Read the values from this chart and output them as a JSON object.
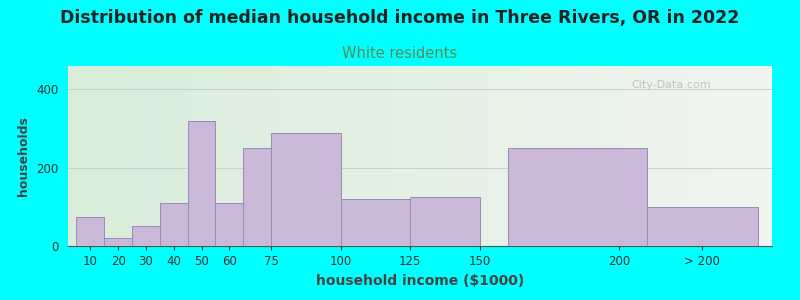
{
  "title": "Distribution of median household income in Three Rivers, OR in 2022",
  "subtitle": "White residents",
  "xlabel": "household income ($1000)",
  "ylabel": "households",
  "background_outer": "#00FFFF",
  "bar_color": "#c9b8d8",
  "bar_edge_color": "#9b89b8",
  "title_fontsize": 12.5,
  "subtitle_fontsize": 10.5,
  "subtitle_color": "#5a8a5a",
  "xlabel_fontsize": 10,
  "ylabel_fontsize": 9,
  "tick_fontsize": 8.5,
  "yticks": [
    0,
    200,
    400
  ],
  "ylim": [
    0,
    460
  ],
  "categories": [
    "10",
    "20",
    "30",
    "40",
    "50",
    "60",
    "75",
    "100",
    "125",
    "150",
    "200",
    "> 200"
  ],
  "values": [
    75,
    20,
    50,
    110,
    320,
    110,
    250,
    290,
    120,
    125,
    250,
    100
  ],
  "bar_centers": [
    10,
    20,
    30,
    40,
    50,
    60,
    72.5,
    87.5,
    112.5,
    137.5,
    185,
    230
  ],
  "bar_widths": [
    10,
    10,
    10,
    10,
    10,
    10,
    15,
    25,
    25,
    25,
    50,
    40
  ],
  "xtick_positions": [
    10,
    20,
    30,
    40,
    50,
    60,
    75,
    100,
    125,
    150,
    200,
    230
  ],
  "xtick_labels": [
    "10",
    "20",
    "30",
    "40",
    "50",
    "60",
    "75",
    "100",
    "125",
    "150",
    "200",
    "> 200"
  ],
  "xlim": [
    2,
    255
  ],
  "watermark": "City-Data.com"
}
